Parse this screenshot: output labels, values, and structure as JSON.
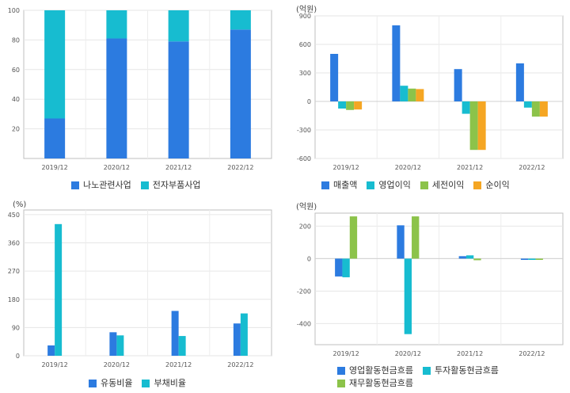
{
  "chart_data": [
    {
      "type": "bar",
      "stacked": true,
      "unit": "",
      "categories": [
        "2019/12",
        "2020/12",
        "2021/12",
        "2022/12"
      ],
      "ylim": [
        0,
        100
      ],
      "yticks": [
        20,
        40,
        60,
        80,
        100
      ],
      "grid": true,
      "legend": "bottom",
      "series": [
        {
          "name": "나노관련사업",
          "color": "#2c7be0",
          "values": [
            27,
            81,
            79,
            87
          ]
        },
        {
          "name": "전자부품사업",
          "color": "#17bcd0",
          "values": [
            73,
            19,
            21,
            13
          ]
        }
      ]
    },
    {
      "type": "bar",
      "stacked": false,
      "unit": "(억원)",
      "categories": [
        "2019/12",
        "2020/12",
        "2021/12",
        "2022/12"
      ],
      "ylim": [
        -600,
        900
      ],
      "yticks": [
        -600,
        -300,
        0,
        300,
        600,
        900
      ],
      "grid": true,
      "legend": "bottom",
      "series": [
        {
          "name": "매출액",
          "color": "#2c7be0",
          "values": [
            500,
            800,
            340,
            400
          ]
        },
        {
          "name": "영업이익",
          "color": "#17bcd0",
          "values": [
            -75,
            165,
            -130,
            -65
          ]
        },
        {
          "name": "세전이익",
          "color": "#8cc34a",
          "values": [
            -90,
            135,
            -510,
            -160
          ]
        },
        {
          "name": "순이익",
          "color": "#f5a623",
          "values": [
            -85,
            130,
            -510,
            -160
          ]
        }
      ]
    },
    {
      "type": "bar",
      "stacked": false,
      "unit": "(%)",
      "categories": [
        "2019/12",
        "2020/12",
        "2021/12",
        "2022/12"
      ],
      "ylim": [
        0,
        465
      ],
      "yticks": [
        0,
        90,
        180,
        270,
        360,
        450
      ],
      "grid": true,
      "legend": "bottom",
      "series": [
        {
          "name": "유동비율",
          "color": "#2c7be0",
          "values": [
            33,
            75,
            143,
            103
          ]
        },
        {
          "name": "부채비율",
          "color": "#17bcd0",
          "values": [
            420,
            65,
            63,
            135
          ]
        }
      ]
    },
    {
      "type": "bar",
      "stacked": false,
      "unit": "(억원)",
      "categories": [
        "2019/12",
        "2020/12",
        "2021/12",
        "2022/12"
      ],
      "ylim": [
        -530,
        280
      ],
      "yticks": [
        -400,
        -200,
        0,
        200
      ],
      "grid": true,
      "legend": "bottom",
      "series": [
        {
          "name": "영업활동현금흐름",
          "color": "#2c7be0",
          "values": [
            -110,
            205,
            15,
            -8
          ]
        },
        {
          "name": "투자활동현금흐름",
          "color": "#17bcd0",
          "values": [
            -115,
            -465,
            20,
            -8
          ]
        },
        {
          "name": "재무활동현금흐름",
          "color": "#8cc34a",
          "values": [
            260,
            260,
            -10,
            -8
          ]
        }
      ]
    }
  ]
}
